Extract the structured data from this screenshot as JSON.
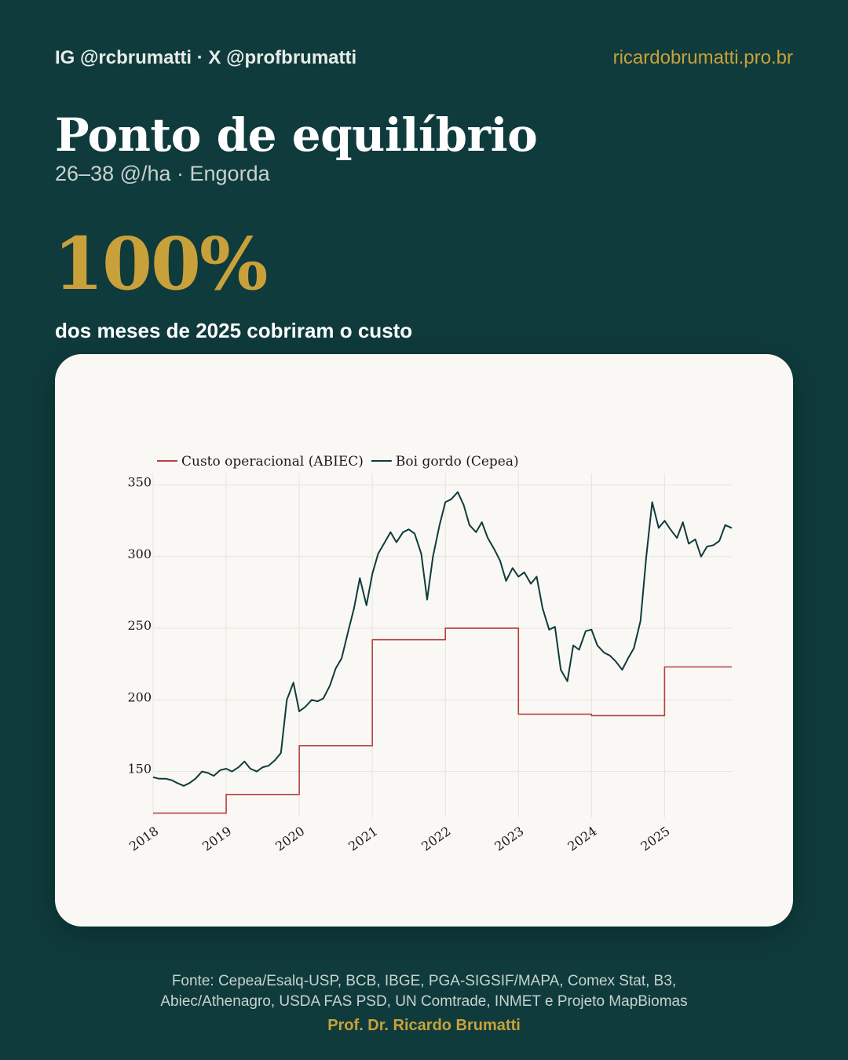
{
  "header": {
    "handles": "IG @rcbrumatti · X @profbrumatti",
    "site": "ricardobrumatti.pro.br"
  },
  "title": "Ponto de equilíbrio",
  "subtitle": "26–38 @/ha · Engorda",
  "highlight": {
    "value": "100%",
    "caption": "dos meses de 2025 cobriram o custo"
  },
  "colors": {
    "background": "#0f3b3c",
    "accent": "#c9a13a",
    "card": "#faf8f4",
    "cost_line": "#b5403f",
    "price_line": "#0f3b3c"
  },
  "chart_data": {
    "type": "line",
    "title": "",
    "xlabel": "",
    "ylabel": "",
    "xlim": [
      2018.0,
      2025.92
    ],
    "ylim": [
      118,
      358
    ],
    "x_ticks": [
      2018,
      2019,
      2020,
      2021,
      2022,
      2023,
      2024,
      2025
    ],
    "x_tick_labels": [
      "2018",
      "2019",
      "2020",
      "2021",
      "2022",
      "2023",
      "2024",
      "2025"
    ],
    "y_ticks": [
      150,
      200,
      250,
      300,
      350
    ],
    "y_tick_labels": [
      "150",
      "200",
      "250",
      "300",
      "350"
    ],
    "grid": true,
    "legend_position": "top-left",
    "series": [
      {
        "name": "Custo operacional (ABIEC)",
        "style": "step",
        "color": "#b5403f",
        "x": [
          2018,
          2019,
          2020,
          2021,
          2022,
          2023,
          2024,
          2025,
          2025.92
        ],
        "values": [
          121,
          134,
          168,
          242,
          250,
          190,
          189,
          223,
          223
        ]
      },
      {
        "name": "Boi gordo (Cepea)",
        "style": "line",
        "color": "#0f3b3c",
        "x": [
          2018.0,
          2018.08,
          2018.17,
          2018.25,
          2018.33,
          2018.42,
          2018.5,
          2018.58,
          2018.67,
          2018.75,
          2018.83,
          2018.92,
          2019.0,
          2019.08,
          2019.17,
          2019.25,
          2019.33,
          2019.42,
          2019.5,
          2019.58,
          2019.67,
          2019.75,
          2019.83,
          2019.92,
          2020.0,
          2020.08,
          2020.17,
          2020.25,
          2020.33,
          2020.42,
          2020.5,
          2020.58,
          2020.67,
          2020.75,
          2020.83,
          2020.92,
          2021.0,
          2021.08,
          2021.17,
          2021.25,
          2021.33,
          2021.42,
          2021.5,
          2021.58,
          2021.67,
          2021.75,
          2021.83,
          2021.92,
          2022.0,
          2022.08,
          2022.17,
          2022.25,
          2022.33,
          2022.42,
          2022.5,
          2022.58,
          2022.67,
          2022.75,
          2022.83,
          2022.92,
          2023.0,
          2023.08,
          2023.17,
          2023.25,
          2023.33,
          2023.42,
          2023.5,
          2023.58,
          2023.67,
          2023.75,
          2023.83,
          2023.92,
          2024.0,
          2024.08,
          2024.17,
          2024.25,
          2024.33,
          2024.42,
          2024.5,
          2024.58,
          2024.67,
          2024.75,
          2024.83,
          2024.92,
          2025.0,
          2025.08,
          2025.17,
          2025.25,
          2025.33,
          2025.42,
          2025.5,
          2025.58,
          2025.67,
          2025.75,
          2025.83,
          2025.92
        ],
        "values": [
          146,
          145,
          145,
          144,
          142,
          140,
          142,
          145,
          150,
          149,
          147,
          151,
          152,
          150,
          153,
          157,
          152,
          150,
          153,
          154,
          158,
          163,
          200,
          212,
          192,
          195,
          200,
          199,
          201,
          210,
          222,
          229,
          248,
          264,
          285,
          266,
          288,
          302,
          310,
          317,
          310,
          317,
          319,
          316,
          302,
          270,
          300,
          322,
          338,
          340,
          345,
          336,
          322,
          317,
          324,
          313,
          305,
          297,
          283,
          292,
          286,
          289,
          281,
          286,
          264,
          249,
          251,
          221,
          213,
          238,
          235,
          248,
          249,
          238,
          233,
          231,
          227,
          221,
          229,
          236,
          255,
          300,
          338,
          320,
          325,
          319,
          313,
          324,
          309,
          312,
          300,
          307,
          308,
          311,
          322,
          320
        ]
      }
    ]
  },
  "footer": {
    "source_line1": "Fonte: Cepea/Esalq-USP, BCB, IBGE, PGA-SIGSIF/MAPA, Comex Stat, B3,",
    "source_line2": "Abiec/Athenagro, USDA FAS PSD, UN Comtrade, INMET e Projeto MapBiomas",
    "author": "Prof. Dr. Ricardo Brumatti"
  }
}
